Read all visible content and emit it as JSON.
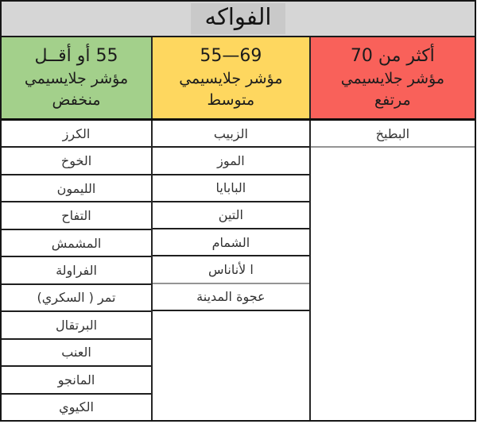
{
  "chart_data": {
    "type": "table",
    "title": "الفواكه",
    "direction": "rtl",
    "title_bg": "#d6d6d6",
    "title_highlight_bg": "#c9c9c9",
    "columns": [
      {
        "id": "low",
        "range": "55 أو أقــل",
        "index_label": "مؤشر جلايسيمي",
        "level": "منخفض",
        "color": "#a3d08b",
        "fruits": [
          "الكرز",
          "الخوخ",
          "الليمون",
          "التفاح",
          "المشمش",
          "الفراولة",
          "تمر ( السكري)",
          "البرتقال",
          "العنب",
          "المانجو",
          "الكيوي"
        ]
      },
      {
        "id": "medium",
        "range": "69—55",
        "index_label": "مؤشر جلايسيمي",
        "level": "متوسط",
        "color": "#fed75f",
        "fruits": [
          "الزبيب",
          "الموز",
          "البابايا",
          "التين",
          "الشمام",
          "ا لأناناس",
          "عجوة المدينة"
        ]
      },
      {
        "id": "high",
        "range": "أكثر من 70",
        "index_label": "مؤشر جلايسيمي",
        "level": "مرتفع",
        "color": "#f9615a",
        "fruits": [
          "البطيخ"
        ]
      }
    ]
  }
}
